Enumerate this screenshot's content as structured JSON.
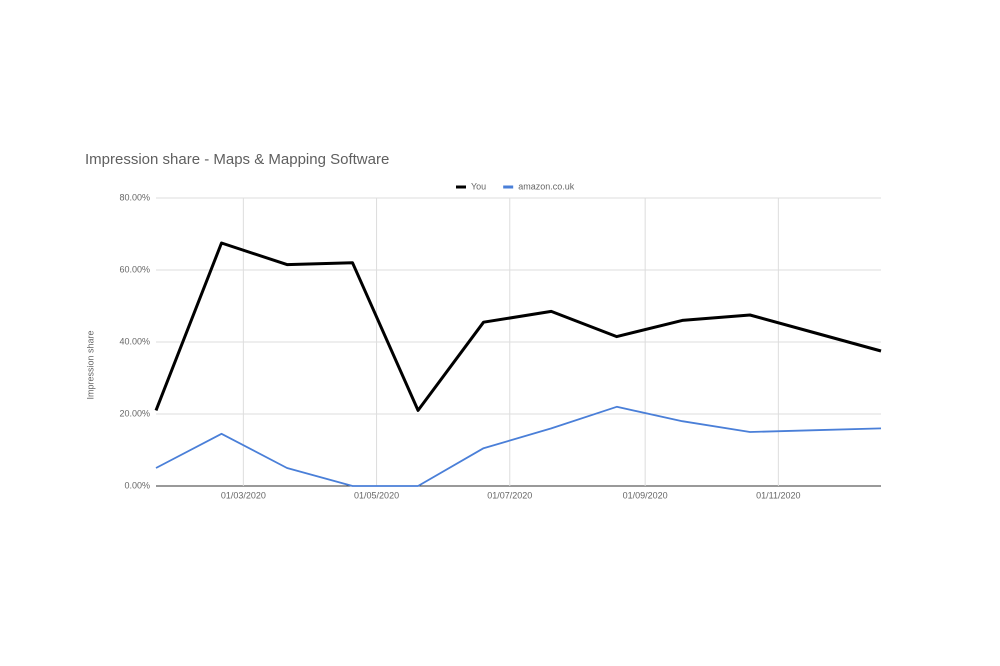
{
  "chart_data": {
    "type": "line",
    "title": "Impression share - Maps & Mapping Software",
    "y_label": "Impression share",
    "x": [
      "2020-01-21",
      "2020-02-20",
      "2020-03-21",
      "2020-04-20",
      "2020-05-20",
      "2020-06-19",
      "2020-07-20",
      "2020-08-19",
      "2020-09-18",
      "2020-10-19",
      "2020-11-18",
      "2020-12-18"
    ],
    "series": [
      {
        "name": "You",
        "color": "#000000",
        "values": [
          21,
          67.5,
          61.5,
          62,
          21,
          45.5,
          48.5,
          41.5,
          46,
          47.5,
          42.5,
          37.5
        ]
      },
      {
        "name": "amazon.co.uk",
        "color": "#4a7fd8",
        "values": [
          5,
          14.5,
          5,
          0,
          0,
          10.5,
          16,
          22,
          18,
          15,
          15.5,
          16
        ]
      }
    ],
    "xlim": [
      "2020-01-21",
      "2020-12-18"
    ],
    "xticks": [
      {
        "value": "2020-03-01",
        "label": "01/03/2020"
      },
      {
        "value": "2020-05-01",
        "label": "01/05/2020"
      },
      {
        "value": "2020-07-01",
        "label": "01/07/2020"
      },
      {
        "value": "2020-09-01",
        "label": "01/09/2020"
      },
      {
        "value": "2020-11-01",
        "label": "01/11/2020"
      }
    ],
    "ylim": [
      0,
      80
    ],
    "yticks": [
      {
        "value": 0,
        "label": "0.00%"
      },
      {
        "value": 20,
        "label": "20.00%"
      },
      {
        "value": 40,
        "label": "40.00%"
      },
      {
        "value": 60,
        "label": "60.00%"
      },
      {
        "value": 80,
        "label": "80.00%"
      }
    ],
    "grid": true,
    "legend": "top"
  }
}
